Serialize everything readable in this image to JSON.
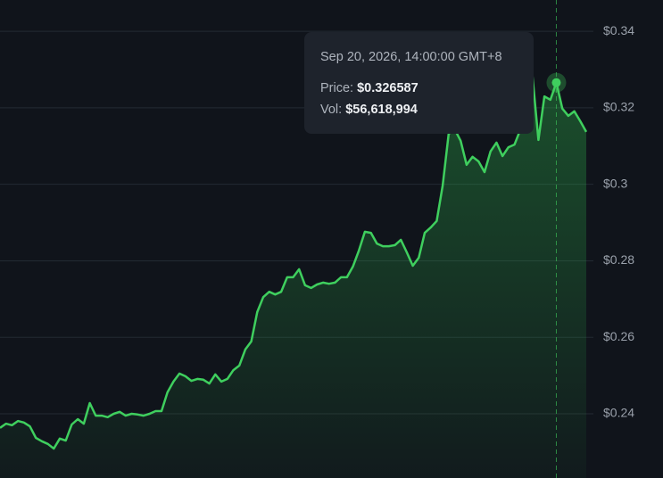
{
  "chart_data": {
    "type": "line",
    "series": [
      {
        "color": "#3fcf5e",
        "values": [
          0.2363,
          0.2374,
          0.237,
          0.2381,
          0.2377,
          0.2367,
          0.2337,
          0.2328,
          0.2321,
          0.2309,
          0.2335,
          0.233,
          0.2372,
          0.2386,
          0.2374,
          0.2428,
          0.2395,
          0.2395,
          0.2391,
          0.24,
          0.2405,
          0.2395,
          0.24,
          0.2398,
          0.2395,
          0.24,
          0.2407,
          0.2407,
          0.2456,
          0.2484,
          0.2505,
          0.2498,
          0.2486,
          0.2491,
          0.2489,
          0.2479,
          0.2503,
          0.2484,
          0.2491,
          0.2514,
          0.2526,
          0.2568,
          0.2589,
          0.2666,
          0.2705,
          0.2719,
          0.2712,
          0.2719,
          0.2757,
          0.2757,
          0.2778,
          0.2736,
          0.2729,
          0.2738,
          0.2743,
          0.274,
          0.2743,
          0.2757,
          0.2757,
          0.2785,
          0.2827,
          0.2876,
          0.2873,
          0.2845,
          0.2838,
          0.2838,
          0.2841,
          0.2855,
          0.2822,
          0.2787,
          0.2808,
          0.2873,
          0.2887,
          0.2904,
          0.2997,
          0.3132,
          0.3144,
          0.3114,
          0.3051,
          0.3072,
          0.306,
          0.3032,
          0.3086,
          0.3109,
          0.3074,
          0.3097,
          0.3104,
          0.3144,
          0.3249,
          0.3284,
          0.3116,
          0.323,
          0.3221,
          0.326587,
          0.3198,
          0.3179,
          0.3191,
          0.3165,
          0.3137
        ]
      }
    ],
    "ylim": [
      0.2232,
      0.3482
    ],
    "yticks": [
      {
        "value": 0.24,
        "label": "$0.24"
      },
      {
        "value": 0.26,
        "label": "$0.26"
      },
      {
        "value": 0.28,
        "label": "$0.28"
      },
      {
        "value": 0.3,
        "label": "$0.3"
      },
      {
        "value": 0.32,
        "label": "$0.32"
      },
      {
        "value": 0.34,
        "label": "$0.34"
      }
    ],
    "grid": true,
    "tooltip": {
      "date": "Sep 20, 2026, 14:00:00 GMT+8",
      "price_label": "Price:",
      "price": {
        "value": 0.326587,
        "label": "$0.326587"
      },
      "vol_label": "Vol:",
      "vol": "$56,618,994"
    }
  }
}
